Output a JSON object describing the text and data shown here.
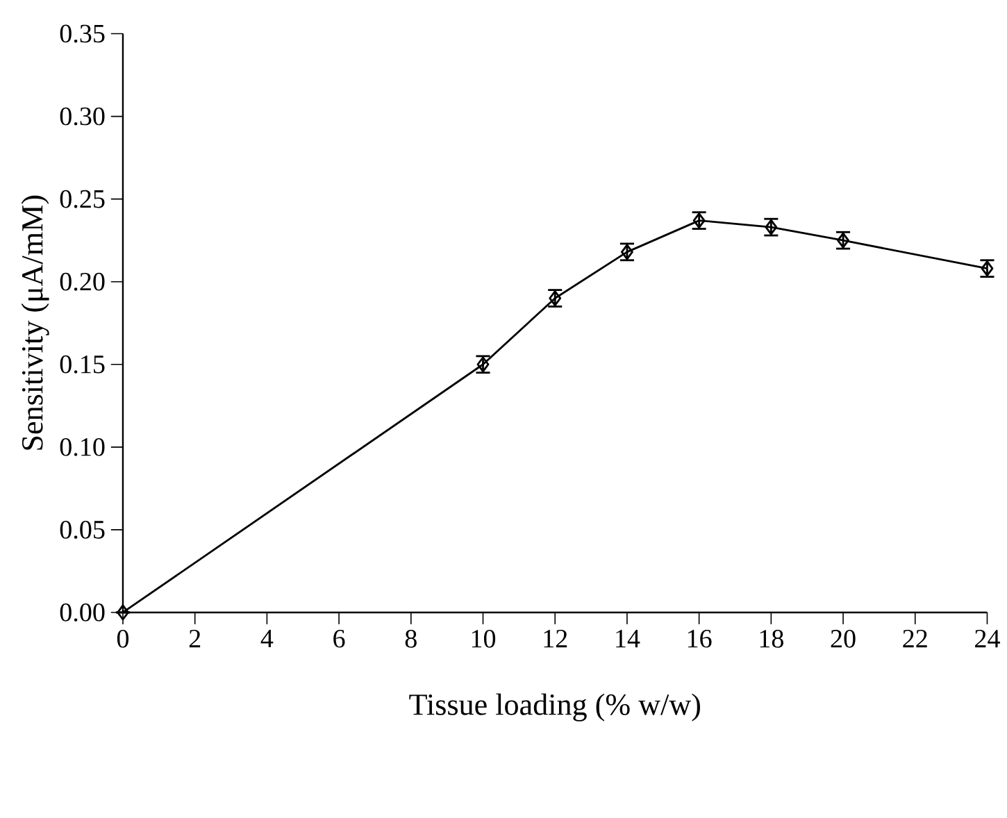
{
  "chart_data": {
    "type": "line",
    "xlabel": "Tissue loading (% w/w)",
    "ylabel": "Sensitivity (μA/mM)",
    "x": [
      0,
      10,
      12,
      14,
      16,
      18,
      20,
      24
    ],
    "values": [
      0,
      0.15,
      0.19,
      0.218,
      0.237,
      0.233,
      0.225,
      0.208
    ],
    "errors": [
      null,
      0.005,
      0.005,
      0.005,
      0.005,
      0.005,
      0.005,
      0.005
    ],
    "color": "#000000",
    "marker": "diamond",
    "line_style": "solid",
    "xlim": [
      0,
      24
    ],
    "ylim": [
      0,
      0.35
    ],
    "xticks": [
      0,
      2,
      4,
      6,
      8,
      10,
      12,
      14,
      16,
      18,
      20,
      22,
      24
    ],
    "yticks": [
      {
        "value": 0,
        "label": "0.00"
      },
      {
        "value": 0.05,
        "label": "0.05"
      },
      {
        "value": 0.1,
        "label": "0.10"
      },
      {
        "value": 0.15,
        "label": "0.15"
      },
      {
        "value": 0.2,
        "label": "0.20"
      },
      {
        "value": 0.25,
        "label": "0.25"
      },
      {
        "value": 0.3,
        "label": "0.30"
      },
      {
        "value": 0.35,
        "label": "0.35"
      }
    ]
  }
}
